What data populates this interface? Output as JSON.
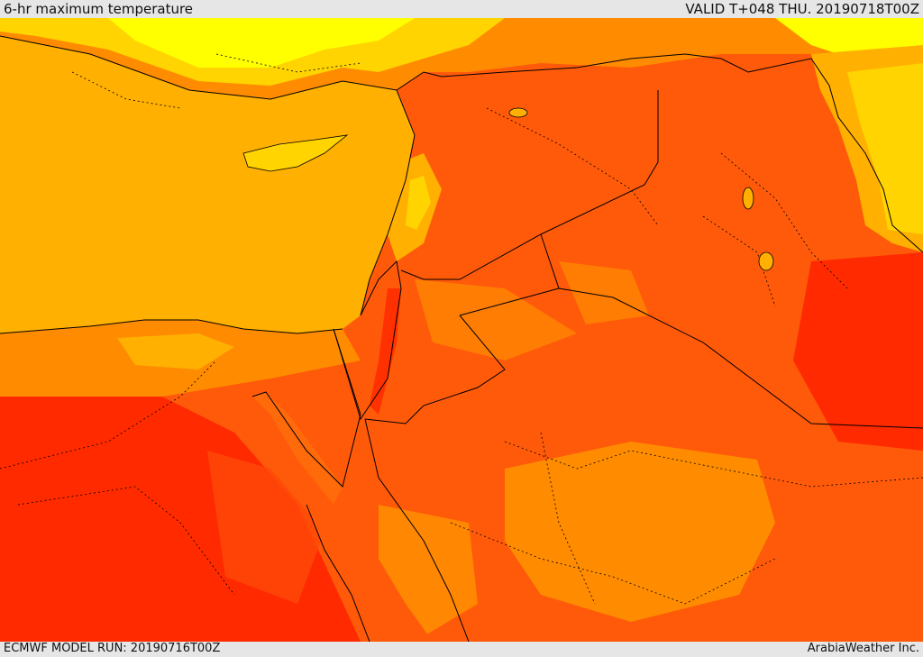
{
  "header": {
    "title": "6-hr maximum temperature",
    "valid": "VALID T+048 THU. 20190718T00Z"
  },
  "footer": {
    "model_run": "ECMWF MODEL RUN: 20190716T00Z",
    "credit": "ArabiaWeather Inc."
  },
  "colors": {
    "hottest": "#ff2a00",
    "very_hot": "#ff4a08",
    "hot": "#ff6a0a",
    "warm": "#ff8c00",
    "mild_sea": "#ffb000",
    "cool": "#ffd400",
    "coolest": "#ffff00",
    "borders": "#000000"
  }
}
